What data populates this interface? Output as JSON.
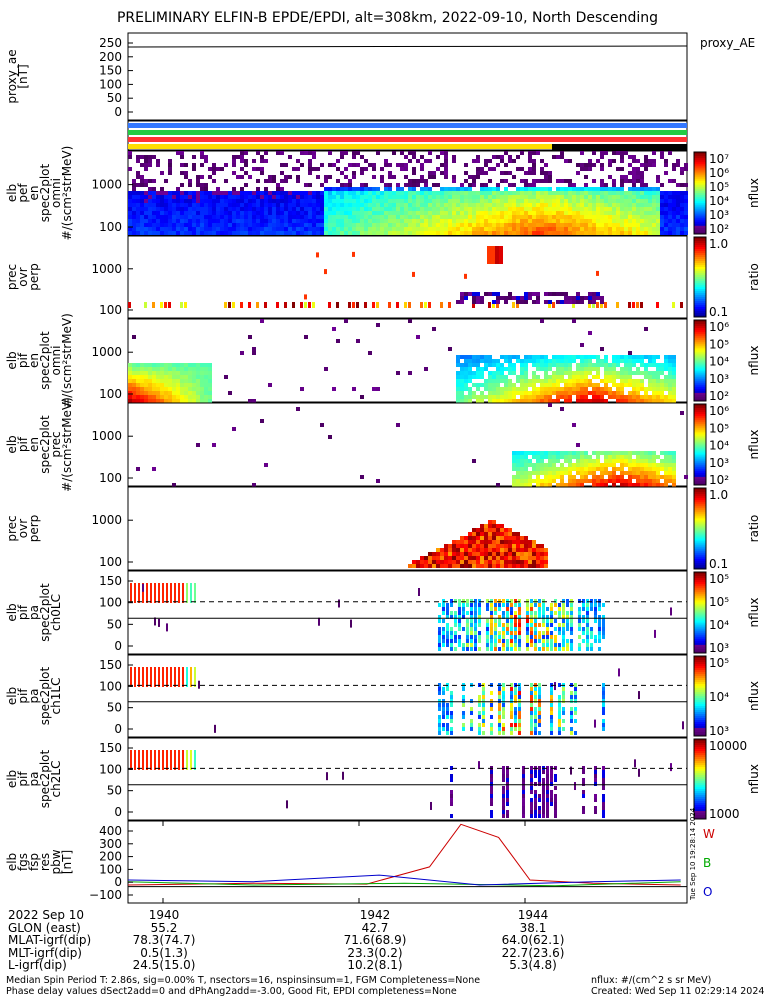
{
  "title": "PRELIMINARY ELFIN-B EPDE/EPDI, alt=308km, 2022-09-10, North Descending",
  "panels": [
    {
      "label_lines": [
        "proxy_ae",
        "[nT]"
      ],
      "yticks": [
        "250",
        "200",
        "150",
        "100",
        "50",
        "0"
      ],
      "legend": "proxy_AE"
    },
    {
      "label_lines": [],
      "yticks": []
    },
    {
      "label_lines": [
        "elb",
        "pef",
        "en",
        "spec2plot",
        "omni",
        "#/(scm²strMeV)"
      ],
      "yticks": [
        "1000",
        "100"
      ],
      "cbar_ticks": [
        "10⁷",
        "10⁶",
        "10⁵",
        "10⁴",
        "10³",
        "10²"
      ],
      "cbar_label": "nflux"
    },
    {
      "label_lines": [
        "prec",
        "ovr",
        "perp"
      ],
      "yticks": [
        "1000",
        "100"
      ],
      "cbar_ticks": [
        "1.0",
        "0.1"
      ],
      "cbar_label": "ratio"
    },
    {
      "label_lines": [
        "elb",
        "pif",
        "en",
        "spec2plot",
        "omni",
        "#/(scm²strMeV)"
      ],
      "yticks": [
        "1000",
        "100"
      ],
      "cbar_ticks": [
        "10⁶",
        "10⁵",
        "10⁴",
        "10³",
        "10²"
      ],
      "cbar_label": "nflux"
    },
    {
      "label_lines": [
        "elb",
        "pif",
        "en",
        "spec2plot",
        "prec",
        "#/(scm²strMeV)"
      ],
      "yticks": [
        "1000",
        "100"
      ],
      "cbar_ticks": [
        "10⁶",
        "10⁵",
        "10⁴",
        "10³",
        "10²"
      ],
      "cbar_label": "nflux"
    },
    {
      "label_lines": [
        "prec",
        "ovr",
        "perp"
      ],
      "yticks": [
        "1000",
        "100"
      ],
      "cbar_ticks": [
        "1.0",
        "0.1"
      ],
      "cbar_label": "ratio"
    },
    {
      "label_lines": [
        "elb",
        "pif",
        "pa",
        "spec2plot",
        "ch0LC"
      ],
      "yticks": [
        "150",
        "100",
        "50",
        "0"
      ],
      "cbar_ticks": [
        "10⁵",
        "10⁵",
        "10⁴",
        "10³"
      ],
      "cbar_label": "nflux"
    },
    {
      "label_lines": [
        "elb",
        "pif",
        "pa",
        "spec2plot",
        "ch1LC"
      ],
      "yticks": [
        "150",
        "100",
        "50",
        "0"
      ],
      "cbar_ticks": [
        "10⁵",
        "10⁴",
        "10³"
      ],
      "cbar_label": "nflux"
    },
    {
      "label_lines": [
        "elb",
        "pif",
        "pa",
        "spec2plot",
        "ch2LC"
      ],
      "yticks": [
        "150",
        "100",
        "50",
        "0"
      ],
      "cbar_ticks": [
        "10000",
        "1000"
      ],
      "cbar_label": "nflux"
    },
    {
      "label_lines": [
        "elb",
        "fgs",
        "fsp",
        "res",
        "pbw",
        "[nT]"
      ],
      "yticks": [
        "400",
        "300",
        "200",
        "100",
        "0",
        "−100"
      ],
      "legend_items": [
        {
          "text": "W",
          "color": "#cc0000"
        },
        {
          "text": "B",
          "color": "#00aa00"
        },
        {
          "text": "O",
          "color": "#0000cc"
        }
      ]
    }
  ],
  "side_stamp": "Tue Sep 10 19:28:14 2024",
  "ephemeris": {
    "rows": [
      {
        "label": "2022 Sep 10",
        "values": [
          "1940",
          "1942",
          "1944"
        ]
      },
      {
        "label": "GLON (east)",
        "values": [
          "55.2",
          "42.7",
          "38.1"
        ]
      },
      {
        "label": "MLAT-igrf(dip)",
        "values": [
          "78.3(74.7)",
          "71.6(68.9)",
          "64.0(62.1)"
        ]
      },
      {
        "label": "MLT-igrf(dip)",
        "values": [
          "0.5(1.3)",
          "23.3(0.2)",
          "22.7(23.6)"
        ]
      },
      {
        "label": "L-igrf(dip)",
        "values": [
          "24.5(15.0)",
          "10.2(8.1)",
          "5.3(4.8)"
        ]
      }
    ]
  },
  "footer": {
    "line1": "Median Spin Period T: 2.86s, sig=0.00% T, nsectors=16, nspinsinsum=1, FGM Completeness=None",
    "line2": "Phase delay values dSect2add=0 and dPhAng2add=-3.00, Good Fit, EPDI completeness=None",
    "right1": "nflux: #/(cm^2 s sr MeV)",
    "right2": "Created: Wed Sep 11 02:29:14 2024"
  },
  "chart_data": {
    "type": "line",
    "x_ticks": [
      "1940",
      "1942",
      "1944"
    ],
    "proxy_ae": {
      "ylim": [
        0,
        250
      ],
      "value_nT": 210
    },
    "pbw_series": [
      {
        "name": "W",
        "color": "#cc0000",
        "x": [
          "19:38:20",
          "19:40:00",
          "19:41:30",
          "19:42:20",
          "19:42:45",
          "19:43:15",
          "19:43:40",
          "19:44:30",
          "19:45:40"
        ],
        "y": [
          10,
          20,
          15,
          120,
          380,
          300,
          40,
          20,
          10
        ]
      },
      {
        "name": "B",
        "color": "#00aa00",
        "x": [
          "19:38:20",
          "19:40:00",
          "19:42:00",
          "19:44:00",
          "19:45:40"
        ],
        "y": [
          30,
          10,
          20,
          5,
          30
        ]
      },
      {
        "name": "O",
        "color": "#0000cc",
        "x": [
          "19:38:20",
          "19:40:00",
          "19:41:40",
          "19:43:00",
          "19:44:30",
          "19:45:40"
        ],
        "y": [
          40,
          30,
          70,
          10,
          30,
          40
        ]
      }
    ],
    "pbw_ylim": [
      -100,
      400
    ],
    "spectrogram_ylim": [
      50,
      5000
    ],
    "pa_ylim": [
      0,
      180
    ]
  }
}
